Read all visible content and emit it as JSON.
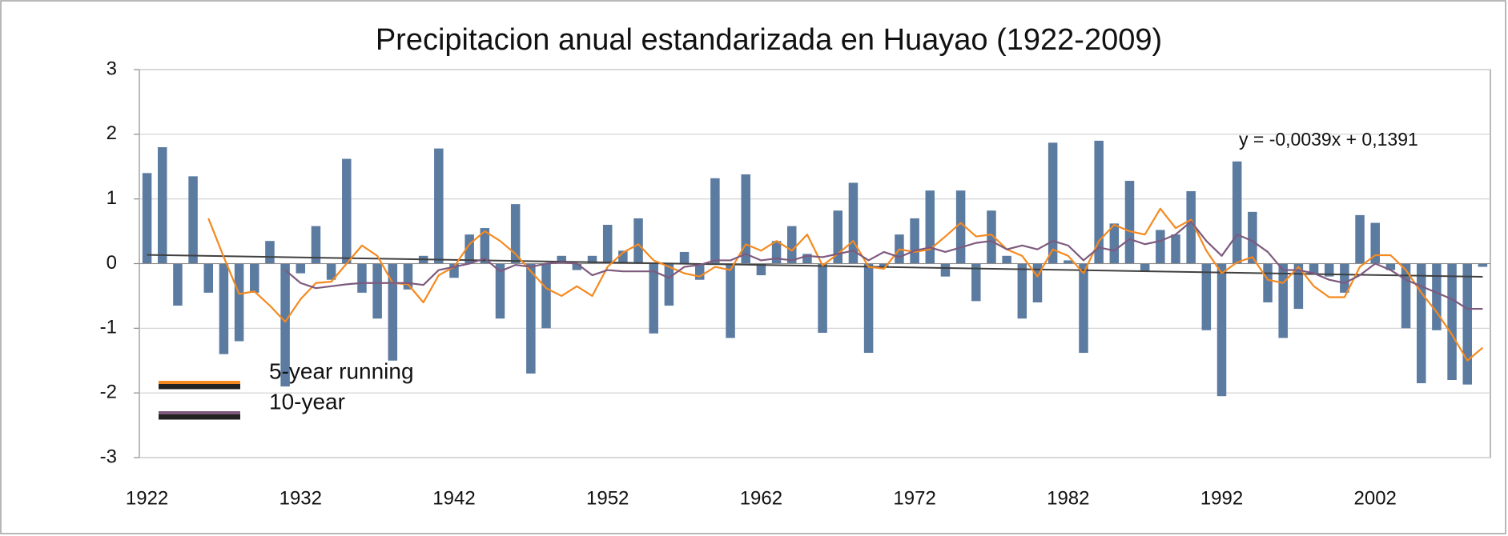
{
  "chart_data": {
    "type": "bar",
    "title": "Precipitacion anual estandarizada en Huayao (1922-2009)",
    "categories": [
      "1922",
      null,
      null,
      null,
      null,
      null,
      null,
      null,
      null,
      null,
      "1932",
      null,
      null,
      null,
      null,
      null,
      null,
      null,
      null,
      null,
      "1942",
      null,
      null,
      null,
      null,
      null,
      null,
      null,
      null,
      null,
      "1952",
      null,
      null,
      null,
      null,
      null,
      null,
      null,
      null,
      null,
      "1962",
      null,
      null,
      null,
      null,
      null,
      null,
      null,
      null,
      null,
      "1972",
      null,
      null,
      null,
      null,
      null,
      null,
      null,
      null,
      null,
      "1982",
      null,
      null,
      null,
      null,
      null,
      null,
      null,
      null,
      null,
      "1992",
      null,
      null,
      null,
      null,
      null,
      null,
      null,
      null,
      null,
      "2002",
      null,
      null,
      null,
      null,
      null,
      null,
      null
    ],
    "values": [
      1.4,
      1.8,
      -0.65,
      1.35,
      -0.45,
      -1.4,
      -1.2,
      -0.45,
      0.35,
      -1.9,
      -0.15,
      0.58,
      -0.25,
      1.62,
      -0.45,
      -0.85,
      -1.5,
      -0.4,
      0.12,
      1.78,
      -0.22,
      0.45,
      0.55,
      -0.85,
      0.92,
      -1.7,
      -1.0,
      0.12,
      -0.1,
      0.12,
      0.6,
      0.2,
      0.7,
      -1.08,
      -0.65,
      0.18,
      -0.25,
      1.32,
      -1.15,
      1.38,
      -0.18,
      0.35,
      0.58,
      0.15,
      -1.07,
      0.82,
      1.25,
      -1.38,
      -0.05,
      0.45,
      0.7,
      1.13,
      -0.2,
      1.13,
      -0.58,
      0.82,
      0.12,
      -0.85,
      -0.6,
      1.87,
      0.05,
      -1.38,
      1.9,
      0.62,
      1.28,
      -0.12,
      0.52,
      0.45,
      1.12,
      -1.03,
      -2.05,
      1.58,
      0.8,
      -0.6,
      -1.15,
      -0.7,
      -0.15,
      -0.2,
      -0.45,
      0.75,
      0.63,
      -0.1,
      -1.0,
      -1.85,
      -1.03,
      -1.8,
      -1.87,
      -0.05
    ],
    "color": "#5b7ba1",
    "lines": [
      {
        "name": "5-year running",
        "color": "#f5891f",
        "values": [
          null,
          null,
          null,
          null,
          0.7,
          0.1,
          -0.47,
          -0.43,
          -0.65,
          -0.9,
          -0.55,
          -0.3,
          -0.28,
          0.0,
          0.28,
          0.12,
          -0.3,
          -0.32,
          -0.6,
          -0.18,
          -0.05,
          0.3,
          0.5,
          0.35,
          0.15,
          -0.12,
          -0.38,
          -0.5,
          -0.35,
          -0.5,
          -0.05,
          0.17,
          0.3,
          0.05,
          -0.05,
          -0.15,
          -0.2,
          -0.05,
          -0.1,
          0.3,
          0.2,
          0.35,
          0.2,
          0.45,
          -0.03,
          0.15,
          0.35,
          -0.05,
          -0.08,
          0.22,
          0.18,
          0.22,
          0.42,
          0.63,
          0.42,
          0.45,
          0.22,
          0.12,
          -0.2,
          0.22,
          0.12,
          -0.15,
          0.35,
          0.6,
          0.5,
          0.45,
          0.85,
          0.55,
          0.68,
          0.2,
          -0.15,
          0.02,
          0.1,
          -0.25,
          -0.3,
          -0.05,
          -0.35,
          -0.52,
          -0.52,
          -0.05,
          0.13,
          0.13,
          -0.1,
          -0.45,
          -0.75,
          -1.1,
          -1.5,
          -1.3
        ]
      },
      {
        "name": "10-year",
        "color": "#7d5a7d",
        "values": [
          null,
          null,
          null,
          null,
          null,
          null,
          null,
          null,
          null,
          -0.1,
          -0.3,
          -0.38,
          -0.35,
          -0.32,
          -0.3,
          -0.3,
          -0.3,
          -0.3,
          -0.33,
          -0.1,
          -0.05,
          0.0,
          0.08,
          -0.12,
          -0.02,
          -0.05,
          0.0,
          0.02,
          0.0,
          -0.18,
          -0.1,
          -0.12,
          -0.12,
          -0.12,
          -0.22,
          -0.05,
          -0.02,
          0.05,
          0.05,
          0.15,
          0.05,
          0.08,
          0.05,
          0.12,
          0.1,
          0.15,
          0.2,
          0.05,
          0.18,
          0.1,
          0.2,
          0.25,
          0.18,
          0.25,
          0.32,
          0.35,
          0.22,
          0.28,
          0.22,
          0.35,
          0.28,
          0.05,
          0.25,
          0.2,
          0.38,
          0.3,
          0.35,
          0.45,
          0.65,
          0.35,
          0.12,
          0.45,
          0.35,
          0.18,
          -0.1,
          -0.1,
          -0.15,
          -0.25,
          -0.3,
          -0.18,
          0.0,
          -0.1,
          -0.25,
          -0.35,
          -0.45,
          -0.55,
          -0.7,
          -0.7
        ]
      }
    ],
    "trendline": {
      "label": "y = -0,0039x + 0,1391",
      "slope": -0.0039,
      "intercept": 0.1391,
      "color": "#404040"
    },
    "ylim": [
      -3,
      3
    ],
    "yticks": [
      -3,
      -2,
      -1,
      0,
      1,
      2,
      3
    ],
    "grid": true,
    "legend": "lower left"
  }
}
